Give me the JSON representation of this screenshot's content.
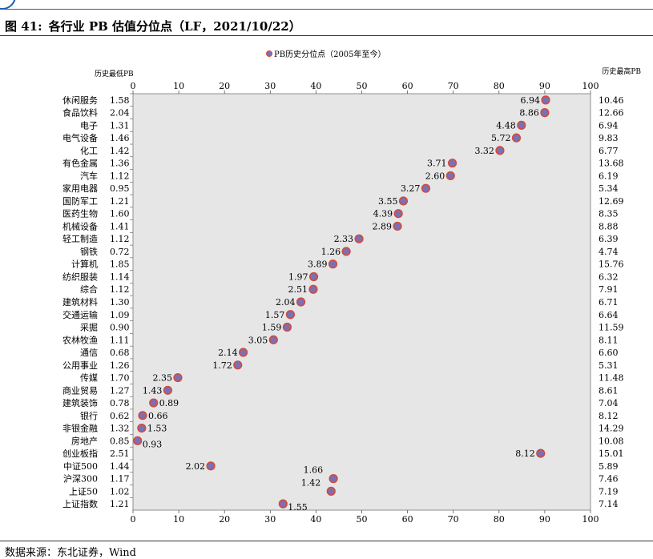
{
  "figure": {
    "title_prefix": "图 41:",
    "title_text": "各行业 PB 估值分位点（LF，2021/10/22）",
    "source": "数据来源：东北证券，Wind"
  },
  "chart_data": {
    "type": "scatter",
    "legend": "PB历史分位点（2005年至今）",
    "legend_position": "top-center",
    "left_header": "历史最低PB",
    "right_header": "历史最高PB",
    "xlim": [
      0,
      100
    ],
    "xticks": [
      0,
      10,
      20,
      30,
      40,
      50,
      60,
      70,
      80,
      90,
      100
    ],
    "grid": false,
    "colors": {
      "marker_fill": "#7b6fb5",
      "marker_stroke": "#d24b3a",
      "plot_bg": "#e6e6e6"
    },
    "rows": [
      {
        "name": "休闲服务",
        "min_pb": "1.58",
        "max_pb": "10.46",
        "pct": 90.2,
        "current": "6.94",
        "label_side": "left"
      },
      {
        "name": "食品饮料",
        "min_pb": "2.04",
        "max_pb": "12.66",
        "pct": 90.0,
        "current": "8.86",
        "label_side": "left"
      },
      {
        "name": "电子",
        "min_pb": "1.31",
        "max_pb": "6.94",
        "pct": 84.9,
        "current": "4.48",
        "label_side": "left"
      },
      {
        "name": "电气设备",
        "min_pb": "1.46",
        "max_pb": "9.83",
        "pct": 83.8,
        "current": "5.72",
        "label_side": "left"
      },
      {
        "name": "化工",
        "min_pb": "1.42",
        "max_pb": "6.77",
        "pct": 80.2,
        "current": "3.32",
        "label_side": "left"
      },
      {
        "name": "有色金属",
        "min_pb": "1.36",
        "max_pb": "13.68",
        "pct": 69.8,
        "current": "3.71",
        "label_side": "left"
      },
      {
        "name": "汽车",
        "min_pb": "1.12",
        "max_pb": "6.19",
        "pct": 69.4,
        "current": "2.60",
        "label_side": "left"
      },
      {
        "name": "家用电器",
        "min_pb": "0.95",
        "max_pb": "5.34",
        "pct": 64.0,
        "current": "3.27",
        "label_side": "left"
      },
      {
        "name": "国防军工",
        "min_pb": "1.21",
        "max_pb": "12.69",
        "pct": 59.1,
        "current": "3.55",
        "label_side": "left"
      },
      {
        "name": "医药生物",
        "min_pb": "1.60",
        "max_pb": "8.35",
        "pct": 58.0,
        "current": "4.39",
        "label_side": "left"
      },
      {
        "name": "机械设备",
        "min_pb": "1.41",
        "max_pb": "8.88",
        "pct": 57.8,
        "current": "2.89",
        "label_side": "left"
      },
      {
        "name": "轻工制造",
        "min_pb": "1.12",
        "max_pb": "6.39",
        "pct": 49.4,
        "current": "2.33",
        "label_side": "left"
      },
      {
        "name": "钢铁",
        "min_pb": "0.72",
        "max_pb": "4.74",
        "pct": 46.6,
        "current": "1.26",
        "label_side": "left"
      },
      {
        "name": "计算机",
        "min_pb": "1.85",
        "max_pb": "15.76",
        "pct": 43.7,
        "current": "3.89",
        "label_side": "left"
      },
      {
        "name": "纺织服装",
        "min_pb": "1.14",
        "max_pb": "6.32",
        "pct": 39.5,
        "current": "1.97",
        "label_side": "left"
      },
      {
        "name": "综合",
        "min_pb": "1.12",
        "max_pb": "7.91",
        "pct": 39.4,
        "current": "2.51",
        "label_side": "left"
      },
      {
        "name": "建筑材料",
        "min_pb": "1.30",
        "max_pb": "6.71",
        "pct": 36.7,
        "current": "2.04",
        "label_side": "left"
      },
      {
        "name": "交通运输",
        "min_pb": "1.09",
        "max_pb": "6.64",
        "pct": 34.4,
        "current": "1.57",
        "label_side": "left"
      },
      {
        "name": "采掘",
        "min_pb": "0.90",
        "max_pb": "11.59",
        "pct": 33.7,
        "current": "1.59",
        "label_side": "left"
      },
      {
        "name": "农林牧渔",
        "min_pb": "1.11",
        "max_pb": "8.11",
        "pct": 30.7,
        "current": "3.05",
        "label_side": "left"
      },
      {
        "name": "通信",
        "min_pb": "0.68",
        "max_pb": "6.60",
        "pct": 24.1,
        "current": "2.14",
        "label_side": "left"
      },
      {
        "name": "公用事业",
        "min_pb": "1.26",
        "max_pb": "5.31",
        "pct": 22.9,
        "current": "1.72",
        "label_side": "left"
      },
      {
        "name": "传媒",
        "min_pb": "1.70",
        "max_pb": "11.48",
        "pct": 9.8,
        "current": "2.35",
        "label_side": "left"
      },
      {
        "name": "商业贸易",
        "min_pb": "1.27",
        "max_pb": "8.61",
        "pct": 7.6,
        "current": "1.43",
        "label_side": "left"
      },
      {
        "name": "建筑装饰",
        "min_pb": "0.78",
        "max_pb": "7.04",
        "pct": 4.5,
        "current": "0.89",
        "label_side": "right"
      },
      {
        "name": "银行",
        "min_pb": "0.62",
        "max_pb": "8.12",
        "pct": 2.1,
        "current": "0.66",
        "label_side": "right"
      },
      {
        "name": "非银金融",
        "min_pb": "1.32",
        "max_pb": "14.29",
        "pct": 1.9,
        "current": "1.53",
        "label_side": "right"
      },
      {
        "name": "房地产",
        "min_pb": "0.85",
        "max_pb": "10.08",
        "pct": 1.0,
        "current": "0.93",
        "label_side": "right-below"
      },
      {
        "name": "创业板指",
        "min_pb": "2.51",
        "max_pb": "15.01",
        "pct": 89.1,
        "current": "8.12",
        "label_side": "left"
      },
      {
        "name": "中证500",
        "min_pb": "1.44",
        "max_pb": "5.89",
        "pct": 17.0,
        "current": "2.02",
        "label_side": "left"
      },
      {
        "name": "沪深300",
        "min_pb": "1.17",
        "max_pb": "7.46",
        "pct": 43.8,
        "current": "1.66",
        "label_side": "above-left"
      },
      {
        "name": "上证50",
        "min_pb": "1.02",
        "max_pb": "7.19",
        "pct": 43.3,
        "current": "1.42",
        "label_side": "above-left"
      },
      {
        "name": "上证指数",
        "min_pb": "1.21",
        "max_pb": "7.14",
        "pct": 32.8,
        "current": "1.55",
        "label_side": "right-below"
      }
    ]
  }
}
